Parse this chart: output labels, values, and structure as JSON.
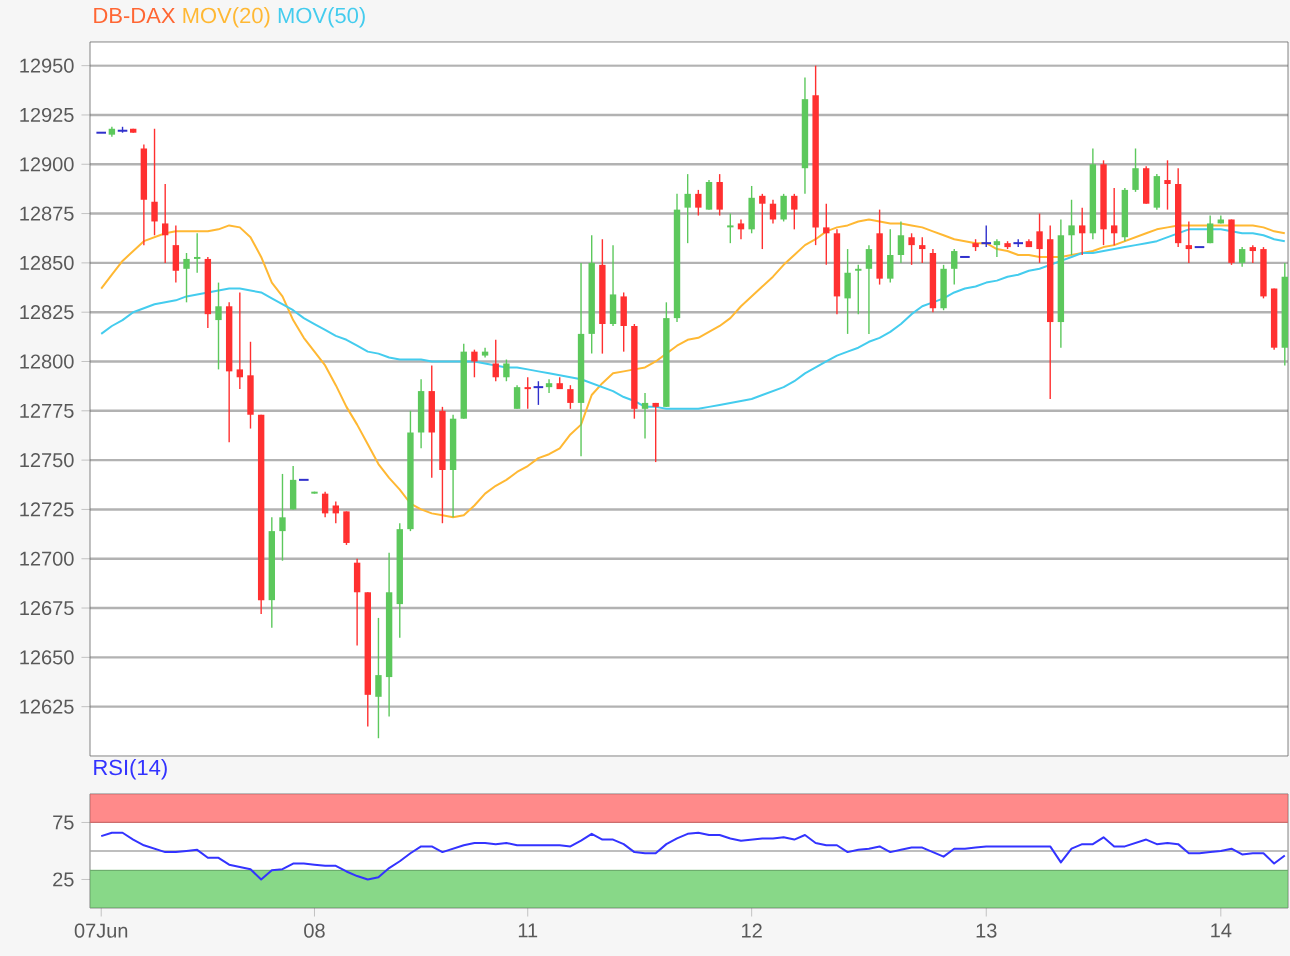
{
  "chart_data": [
    {
      "type": "candlestick",
      "title": "DB-DAX",
      "legend": "top left",
      "grid": "y",
      "ylim": [
        12600,
        12962
      ],
      "yticks": [
        12625,
        12650,
        12675,
        12700,
        12725,
        12750,
        12775,
        12800,
        12825,
        12850,
        12875,
        12900,
        12925,
        12950
      ],
      "categories": [
        null,
        null,
        null,
        null,
        null,
        null,
        null,
        null,
        null,
        null,
        null,
        null,
        null,
        null,
        null,
        null,
        null,
        null,
        null,
        null,
        null,
        null,
        null,
        null,
        null,
        null,
        null,
        null,
        null,
        null,
        null,
        null,
        null,
        null,
        null,
        null,
        null,
        null,
        null,
        null,
        null,
        null,
        null,
        null,
        null,
        null,
        null,
        null,
        null,
        null,
        null,
        null,
        null,
        null,
        null,
        null,
        null,
        null,
        null,
        null,
        null,
        null,
        null,
        null,
        null,
        null,
        null,
        null,
        null,
        null,
        null,
        null,
        null,
        null,
        null,
        null,
        null,
        null,
        null,
        null,
        null,
        null,
        null,
        null,
        null,
        null,
        null,
        null,
        null,
        null,
        null,
        null,
        null,
        null,
        null,
        null,
        null,
        null,
        null,
        null,
        null,
        null,
        null,
        null,
        null,
        null,
        null,
        null,
        null,
        null,
        null,
        null
      ],
      "ohlc": [
        [
          12916,
          12916,
          12916,
          12916
        ],
        [
          12915,
          12919,
          12914,
          12918
        ],
        [
          12917,
          12919,
          12916,
          12917
        ],
        [
          12918,
          12918,
          12916,
          12916
        ],
        [
          12908,
          12910,
          12859,
          12882
        ],
        [
          12881,
          12918,
          12864,
          12871
        ],
        [
          12870,
          12890,
          12850,
          12864
        ],
        [
          12859,
          12869,
          12840,
          12846
        ],
        [
          12847,
          12855,
          12830,
          12852
        ],
        [
          12852,
          12865,
          12845,
          12853
        ],
        [
          12852,
          12853,
          12817,
          12824
        ],
        [
          12821,
          12840,
          12796,
          12828
        ],
        [
          12828,
          12830,
          12759,
          12795
        ],
        [
          12796,
          12835,
          12786,
          12792
        ],
        [
          12793,
          12810,
          12766,
          12773
        ],
        [
          12773,
          12773,
          12672,
          12679
        ],
        [
          12679,
          12721,
          12665,
          12714
        ],
        [
          12714,
          12743,
          12699,
          12721
        ],
        [
          12725,
          12747,
          12725,
          12740
        ],
        [
          12740,
          12740,
          12740,
          12740
        ],
        [
          12733,
          12734,
          12733,
          12734
        ],
        [
          12733,
          12734,
          12721,
          12723
        ],
        [
          12727,
          12729,
          12718,
          12723
        ],
        [
          12724,
          12724,
          12707,
          12708
        ],
        [
          12698,
          12700,
          12656,
          12683
        ],
        [
          12683,
          12683,
          12615,
          12631
        ],
        [
          12630,
          12670,
          12609,
          12641
        ],
        [
          12640,
          12703,
          12620,
          12683
        ],
        [
          12677,
          12718,
          12660,
          12715
        ],
        [
          12715,
          12775,
          12714,
          12764
        ],
        [
          12764,
          12791,
          12756,
          12785
        ],
        [
          12785,
          12798,
          12741,
          12764
        ],
        [
          12775,
          12777,
          12718,
          12745
        ],
        [
          12745,
          12773,
          12721,
          12771
        ],
        [
          12771,
          12809,
          12771,
          12805
        ],
        [
          12805,
          12806,
          12792,
          12800
        ],
        [
          12803,
          12807,
          12802,
          12805
        ],
        [
          12799,
          12811,
          12790,
          12792
        ],
        [
          12792,
          12801,
          12790,
          12799
        ],
        [
          12776,
          12788,
          12776,
          12787
        ],
        [
          12787,
          12792,
          12776,
          12786
        ],
        [
          12787,
          12790,
          12778,
          12787
        ],
        [
          12787,
          12791,
          12784,
          12789
        ],
        [
          12789,
          12792,
          12786,
          12786
        ],
        [
          12786,
          12788,
          12776,
          12779
        ],
        [
          12779,
          12850,
          12752,
          12814
        ],
        [
          12814,
          12864,
          12804,
          12850
        ],
        [
          12849,
          12862,
          12804,
          12819
        ],
        [
          12819,
          12859,
          12818,
          12834
        ],
        [
          12833,
          12835,
          12805,
          12818
        ],
        [
          12818,
          12819,
          12771,
          12776
        ],
        [
          12776,
          12784,
          12761,
          12779
        ],
        [
          12779,
          12779,
          12749,
          12777
        ],
        [
          12777,
          12830,
          12777,
          12822
        ],
        [
          12822,
          12885,
          12820,
          12877
        ],
        [
          12878,
          12895,
          12860,
          12885
        ],
        [
          12885,
          12887,
          12874,
          12878
        ],
        [
          12877,
          12892,
          12877,
          12891
        ],
        [
          12891,
          12895,
          12874,
          12877
        ],
        [
          12868,
          12875,
          12860,
          12869
        ],
        [
          12870,
          12872,
          12862,
          12867
        ],
        [
          12867,
          12889,
          12865,
          12883
        ],
        [
          12884,
          12885,
          12857,
          12880
        ],
        [
          12880,
          12882,
          12870,
          12872
        ],
        [
          12872,
          12885,
          12871,
          12884
        ],
        [
          12884,
          12885,
          12867,
          12877
        ],
        [
          12898,
          12944,
          12885,
          12933
        ],
        [
          12935,
          12950,
          12859,
          12868
        ],
        [
          12868,
          12880,
          12849,
          12865
        ],
        [
          12865,
          12867,
          12824,
          12833
        ],
        [
          12832,
          12857,
          12814,
          12845
        ],
        [
          12846,
          12849,
          12824,
          12847
        ],
        [
          12847,
          12859,
          12814,
          12857
        ],
        [
          12865,
          12877,
          12839,
          12842
        ],
        [
          12842,
          12867,
          12840,
          12854
        ],
        [
          12854,
          12871,
          12850,
          12864
        ],
        [
          12863,
          12865,
          12849,
          12859
        ],
        [
          12859,
          12863,
          12850,
          12857
        ],
        [
          12855,
          12857,
          12825,
          12827
        ],
        [
          12827,
          12849,
          12826,
          12847
        ],
        [
          12847,
          12857,
          12839,
          12856
        ],
        [
          12853,
          12853,
          12853,
          12853
        ],
        [
          12860,
          12862,
          12856,
          12858
        ],
        [
          12860,
          12869,
          12858,
          12860
        ],
        [
          12859,
          12862,
          12853,
          12861
        ],
        [
          12860,
          12861,
          12857,
          12858
        ],
        [
          12860,
          12862,
          12858,
          12860
        ],
        [
          12861,
          12862,
          12858,
          12858
        ],
        [
          12866,
          12875,
          12850,
          12857
        ],
        [
          12862,
          12869,
          12781,
          12820
        ],
        [
          12820,
          12872,
          12807,
          12864
        ],
        [
          12864,
          12882,
          12854,
          12869
        ],
        [
          12869,
          12878,
          12854,
          12865
        ],
        [
          12865,
          12908,
          12862,
          12900
        ],
        [
          12900,
          12902,
          12859,
          12867
        ],
        [
          12869,
          12888,
          12859,
          12865
        ],
        [
          12863,
          12888,
          12861,
          12887
        ],
        [
          12887,
          12908,
          12886,
          12898
        ],
        [
          12898,
          12899,
          12880,
          12880
        ],
        [
          12878,
          12895,
          12877,
          12894
        ],
        [
          12892,
          12902,
          12877,
          12890
        ],
        [
          12890,
          12898,
          12858,
          12860
        ],
        [
          12859,
          12871,
          12850,
          12857
        ],
        [
          12858,
          12858,
          12858,
          12858
        ],
        [
          12860,
          12874,
          12860,
          12870
        ],
        [
          12870,
          12874,
          12870,
          12872
        ],
        [
          12872,
          12872,
          12849,
          12850
        ],
        [
          12850,
          12858,
          12848,
          12857
        ],
        [
          12858,
          12859,
          12850,
          12856
        ],
        [
          12857,
          12858,
          12832,
          12833
        ],
        [
          12837,
          12837,
          12806,
          12807
        ],
        [
          12807,
          12850,
          12798,
          12843
        ]
      ],
      "series": [
        {
          "type": "line",
          "name": "MOV(20)",
          "color": "#ffb833",
          "values": [
            12837,
            12844,
            12851,
            12856,
            12861,
            12863,
            12865,
            12866,
            12866,
            12866,
            12866,
            12867,
            12869,
            12868,
            12863,
            12853,
            12840,
            12833,
            12821,
            12812,
            12805,
            12798,
            12788,
            12777,
            12768,
            12758,
            12748,
            12741,
            12735,
            12728,
            12725,
            12723,
            12722,
            12721,
            12722,
            12727,
            12733,
            12737,
            12740,
            12744,
            12747,
            12751,
            12753,
            12756,
            12763,
            12768,
            12783,
            12789,
            12794,
            12795,
            12796,
            12797,
            12800,
            12804,
            12808,
            12811,
            12812,
            12815,
            12818,
            12822,
            12828,
            12833,
            12838,
            12843,
            12849,
            12854,
            12859,
            12862,
            12866,
            12868,
            12869,
            12871,
            12872,
            12871,
            12870,
            12870,
            12869,
            12868,
            12866,
            12864,
            12862,
            12861,
            12860,
            12860,
            12857,
            12856,
            12854,
            12854,
            12853,
            12853,
            12853,
            12854,
            12855,
            12856,
            12858,
            12859,
            12861,
            12863,
            12865,
            12867,
            12868,
            12869,
            12869,
            12869,
            12869,
            12869,
            12869,
            12869,
            12869,
            12868,
            12866,
            12865
          ]
        },
        {
          "type": "line",
          "name": "MOV(50)",
          "color": "#44ccee",
          "values": [
            12814,
            12818,
            12821,
            12825,
            12827,
            12829,
            12830,
            12831,
            12833,
            12834,
            12835,
            12836,
            12837,
            12837,
            12836,
            12835,
            12832,
            12829,
            12826,
            12822,
            12819,
            12816,
            12813,
            12811,
            12808,
            12805,
            12804,
            12802,
            12801,
            12801,
            12801,
            12800,
            12800,
            12800,
            12800,
            12800,
            12799,
            12798,
            12797,
            12797,
            12796,
            12795,
            12794,
            12793,
            12792,
            12791,
            12789,
            12787,
            12785,
            12782,
            12780,
            12777,
            12777,
            12776,
            12776,
            12776,
            12776,
            12777,
            12778,
            12779,
            12780,
            12781,
            12783,
            12785,
            12787,
            12790,
            12794,
            12797,
            12800,
            12803,
            12805,
            12807,
            12810,
            12812,
            12815,
            12819,
            12824,
            12828,
            12830,
            12832,
            12835,
            12837,
            12838,
            12840,
            12841,
            12843,
            12844,
            12846,
            12847,
            12849,
            12851,
            12853,
            12855,
            12855,
            12856,
            12857,
            12858,
            12859,
            12860,
            12861,
            12863,
            12865,
            12867,
            12867,
            12867,
            12867,
            12866,
            12865,
            12865,
            12864,
            12862,
            12861
          ]
        }
      ]
    },
    {
      "type": "line",
      "title": "RSI(14)",
      "ylim": [
        0,
        100
      ],
      "yticks": [
        25,
        75
      ],
      "categories": [
        "07Jun",
        null,
        null,
        null,
        null,
        null,
        null,
        null,
        null,
        null,
        null,
        null,
        null,
        null,
        null,
        null,
        null,
        null,
        null,
        null,
        "08",
        null,
        null,
        null,
        null,
        null,
        null,
        null,
        null,
        null,
        null,
        null,
        null,
        null,
        null,
        null,
        null,
        null,
        null,
        null,
        "11",
        null,
        null,
        null,
        null,
        null,
        null,
        null,
        null,
        null,
        null,
        null,
        null,
        null,
        null,
        null,
        null,
        null,
        null,
        null,
        null,
        "12",
        null,
        null,
        null,
        null,
        null,
        null,
        null,
        null,
        null,
        null,
        null,
        null,
        null,
        null,
        null,
        null,
        null,
        null,
        null,
        null,
        null,
        "13",
        null,
        null,
        null,
        null,
        null,
        null,
        null,
        null,
        null,
        null,
        null,
        null,
        null,
        null,
        null,
        null,
        null,
        null,
        null,
        null,
        null,
        "14",
        null,
        null,
        null,
        null,
        null,
        null
      ],
      "bands": [
        {
          "axis": "y",
          "from": 75,
          "to": 100,
          "color": "#ff8a8a"
        },
        {
          "axis": "y",
          "from": 0,
          "to": 33,
          "color": "#88d888"
        }
      ],
      "ref_lines": [
        {
          "axis": "y",
          "value": 50,
          "color": "#a8a8a8"
        }
      ],
      "series": [
        {
          "color": "#3333ff",
          "values": [
            63,
            66,
            66,
            60,
            55,
            52,
            49,
            49,
            50,
            51,
            44,
            44,
            38,
            36,
            34,
            25,
            33,
            34,
            39,
            39,
            38,
            37,
            37,
            32,
            28,
            25,
            27,
            35,
            41,
            48,
            54,
            54,
            49,
            52,
            55,
            57,
            57,
            56,
            57,
            55,
            55,
            55,
            55,
            55,
            54,
            59,
            65,
            60,
            60,
            56,
            49,
            48,
            48,
            56,
            61,
            65,
            66,
            64,
            64,
            61,
            59,
            60,
            61,
            61,
            62,
            60,
            64,
            57,
            55,
            55,
            49,
            51,
            52,
            54,
            49,
            51,
            53,
            53,
            49,
            45,
            52,
            52,
            53,
            54,
            54,
            54,
            54,
            54,
            54,
            54,
            40,
            52,
            56,
            56,
            62,
            54,
            54,
            57,
            60,
            56,
            57,
            56,
            48,
            48,
            49,
            50,
            52,
            47,
            48,
            48,
            39,
            46
          ]
        }
      ]
    }
  ]
}
